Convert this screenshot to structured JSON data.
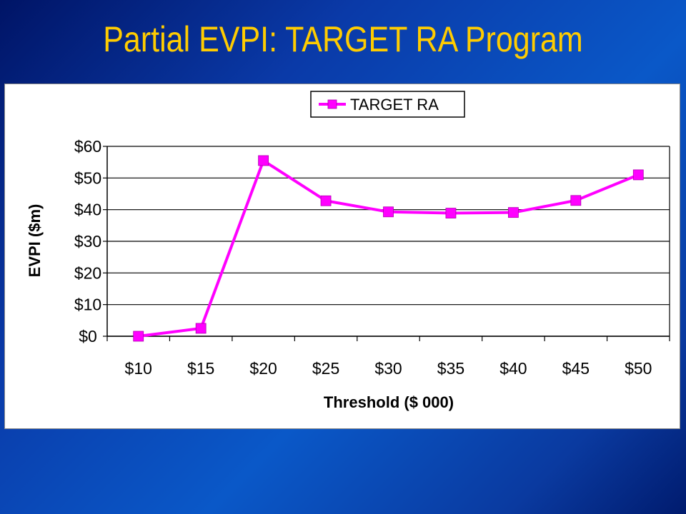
{
  "slide": {
    "title": "Partial EVPI: TARGET RA Program"
  },
  "colors": {
    "title": "#ffcc00",
    "series": "#ff00ff",
    "background_dark": "#001466",
    "background_light": "#0a58c8"
  },
  "chart_data": {
    "type": "line",
    "title": "",
    "xlabel": "Threshold ($ 000)",
    "ylabel": "EVPI ($m)",
    "categories": [
      "$10",
      "$15",
      "$20",
      "$25",
      "$30",
      "$35",
      "$40",
      "$45",
      "$50"
    ],
    "series": [
      {
        "name": "TARGET RA",
        "values": [
          0,
          2.5,
          55.5,
          42.8,
          39.3,
          38.9,
          39.1,
          42.9,
          51
        ],
        "color": "#ff00ff",
        "marker": "square"
      }
    ],
    "y_ticks": [
      "$0",
      "$10",
      "$20",
      "$30",
      "$40",
      "$50",
      "$60"
    ],
    "ylim": [
      0,
      60
    ],
    "grid": "horizontal",
    "legend_position": "top"
  }
}
